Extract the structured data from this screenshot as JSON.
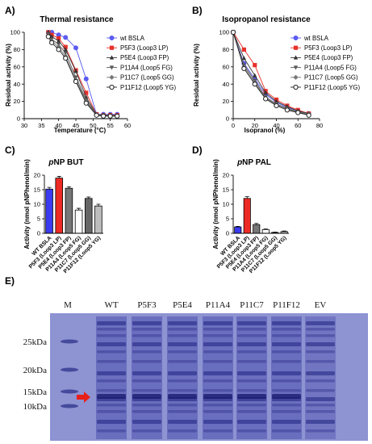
{
  "panel_labels": {
    "A": "A)",
    "B": "B)",
    "C": "C)",
    "D": "D)",
    "E": "E)"
  },
  "chart_data": [
    {
      "id": "A",
      "type": "line",
      "title": "Thermal resistance",
      "xlabel": "Temperature (°C)",
      "ylabel": "Residual activity (%)",
      "xlim": [
        30,
        60
      ],
      "ylim": [
        0,
        100
      ],
      "xticks": [
        "30",
        "35",
        "40",
        "45",
        "50",
        "55",
        "60"
      ],
      "yticks": [
        "0",
        "20",
        "40",
        "60",
        "80",
        "100"
      ],
      "legend_position": "right",
      "x": [
        37,
        38,
        40,
        42,
        45,
        48,
        51,
        53,
        55,
        57
      ],
      "series": [
        {
          "name": "wt BSLA",
          "color": "#5b5bf0",
          "marker": "circle-filled",
          "values": [
            100,
            100,
            97,
            94,
            82,
            46,
            5,
            5,
            5,
            5
          ]
        },
        {
          "name": "P5F3 (Loop3 LP)",
          "color": "#e8302c",
          "marker": "square",
          "values": [
            100,
            97,
            93,
            83,
            56,
            30,
            5,
            4,
            4,
            4
          ]
        },
        {
          "name": "P5E4 (Loop3 FP)",
          "color": "#333333",
          "marker": "triangle-up",
          "values": [
            100,
            95,
            90,
            80,
            55,
            25,
            5,
            4,
            4,
            4
          ]
        },
        {
          "name": "P11A4 (Loop5 FG)",
          "color": "#555555",
          "marker": "triangle-down",
          "values": [
            98,
            92,
            86,
            76,
            48,
            22,
            4,
            4,
            3,
            3
          ]
        },
        {
          "name": "P11C7 (Loop5 GG)",
          "color": "#777777",
          "marker": "diamond",
          "values": [
            96,
            90,
            83,
            72,
            45,
            20,
            4,
            3,
            3,
            3
          ]
        },
        {
          "name": "P11F12 (Loop5 YG)",
          "color": "#222222",
          "marker": "circle-open",
          "values": [
            95,
            88,
            80,
            70,
            43,
            18,
            4,
            3,
            3,
            3
          ]
        }
      ]
    },
    {
      "id": "B",
      "type": "line",
      "title": "Isopropanol resistance",
      "xlabel": "Isopranol (%)",
      "ylabel": "Residual activity (%)",
      "xlim": [
        0,
        80
      ],
      "ylim": [
        0,
        100
      ],
      "xticks": [
        "0",
        "20",
        "40",
        "60",
        "80"
      ],
      "yticks": [
        "0",
        "20",
        "40",
        "60",
        "80",
        "100"
      ],
      "legend_position": "right",
      "x": [
        0,
        10,
        20,
        30,
        40,
        50,
        60,
        70
      ],
      "series": [
        {
          "name": "wt BSLA",
          "color": "#5b5bf0",
          "marker": "circle-filled",
          "values": [
            100,
            64,
            46,
            28,
            19,
            13,
            9,
            6
          ]
        },
        {
          "name": "P5F3 (Loop3 LP)",
          "color": "#e8302c",
          "marker": "square",
          "values": [
            100,
            80,
            62,
            32,
            22,
            15,
            10,
            6
          ]
        },
        {
          "name": "P5E4 (Loop3 FP)",
          "color": "#333333",
          "marker": "triangle-up",
          "values": [
            100,
            70,
            50,
            30,
            20,
            14,
            9,
            6
          ]
        },
        {
          "name": "P11A4 (Loop5 FG)",
          "color": "#555555",
          "marker": "triangle-down",
          "values": [
            100,
            62,
            44,
            25,
            17,
            12,
            8,
            5
          ]
        },
        {
          "name": "P11C7 (Loop5 GG)",
          "color": "#777777",
          "marker": "diamond",
          "values": [
            100,
            60,
            42,
            24,
            16,
            11,
            7,
            5
          ]
        },
        {
          "name": "P11F12 (Loop5 YG)",
          "color": "#222222",
          "marker": "circle-open",
          "values": [
            100,
            58,
            40,
            23,
            15,
            10,
            7,
            4
          ]
        }
      ]
    },
    {
      "id": "C",
      "type": "bar",
      "title": "pNP BUT",
      "title_italic": "p",
      "title_rest": "NP BUT",
      "ylabel": "Activity (nmol pNPhenol/min)",
      "ylim": [
        0,
        20
      ],
      "yticks": [
        "0",
        "5",
        "10",
        "15",
        "20"
      ],
      "categories": [
        "WT BSLA",
        "P5F3 (Loop3 LP)",
        "P5E4 (Loop3 FP)",
        "P11A4 (Loop5 FG)",
        "P11C7 (Loop5 GG)",
        "P11F12 (Loop5 YG)"
      ],
      "values": [
        15.2,
        19.0,
        15.5,
        8.0,
        12.0,
        9.4
      ],
      "errors": [
        0.6,
        0.6,
        0.5,
        0.6,
        0.5,
        0.6
      ],
      "colors": [
        "#3b3bf2",
        "#ee2a24",
        "#777777",
        "#ffffff",
        "#666666",
        "#bdbdbd"
      ]
    },
    {
      "id": "D",
      "type": "bar",
      "title": "pNP PAL",
      "title_italic": "p",
      "title_rest": "NP PAL",
      "ylabel": "Activity (nmol pNPhenol/min)",
      "ylim": [
        0,
        20
      ],
      "yticks": [
        "0",
        "5",
        "10",
        "15",
        "20"
      ],
      "categories": [
        "WT BSLA",
        "P5F3 (Loop3 LP)",
        "P5E4 (Loop3 FP)",
        "P11A4 (Loop5 FG)",
        "P11C7 (Loop5 GG)",
        "P11F12 (Loop5 YG)"
      ],
      "values": [
        2.2,
        12.0,
        3.0,
        1.3,
        0.3,
        0.6
      ],
      "errors": [
        0.2,
        0.6,
        0.4,
        0.2,
        0.1,
        0.2
      ],
      "colors": [
        "#3b3bf2",
        "#ee2a24",
        "#777777",
        "#ffffff",
        "#666666",
        "#bdbdbd"
      ]
    }
  ],
  "gel": {
    "lanes": [
      "M",
      "WT",
      "P5F3",
      "P5E4",
      "P11A4",
      "P11C7",
      "P11F12",
      "EV"
    ],
    "markers": [
      "25kDa",
      "20kDa",
      "15kDa",
      "10kDa"
    ],
    "background": "#8b8fcf",
    "band_color": "#1f2380",
    "arrow_color": "#e8201a"
  }
}
